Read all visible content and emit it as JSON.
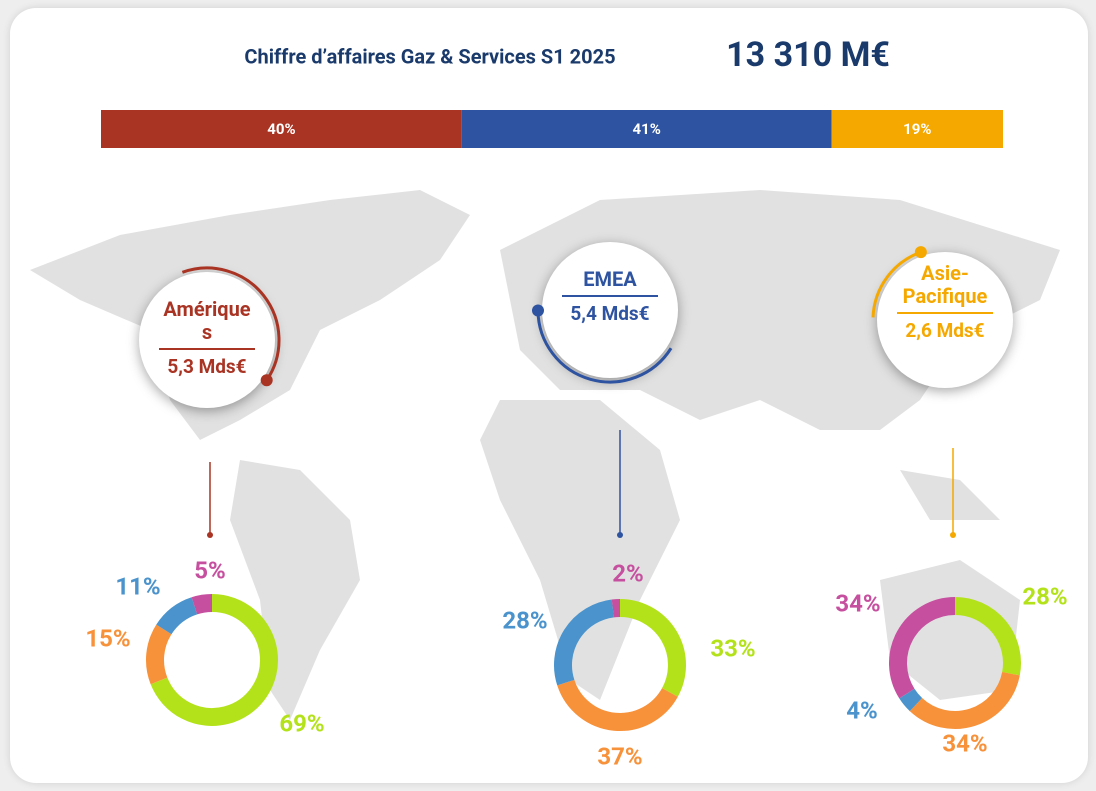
{
  "title": "Chiffre d’affaires Gaz & Services S1 2025",
  "total": "13 310 M€",
  "regions": [
    {
      "name": "Amériques",
      "revenue": "5,3 Mds€",
      "color": "#a93424"
    },
    {
      "name": "EMEA",
      "revenue": "5,4 Mds€",
      "color": "#2e53a0"
    },
    {
      "name": "Asie-Pacifique",
      "revenue": "2,6 Mds€",
      "color": "#f5a800"
    }
  ],
  "chart_data": [
    {
      "type": "stacked_bar",
      "values": [
        40,
        41,
        19
      ],
      "value_labels": [
        "40%",
        "41%",
        "19%"
      ],
      "colors": [
        "#a93424",
        "#2e53a0",
        "#f5a800"
      ]
    },
    {
      "type": "donut",
      "values": [
        69,
        15,
        11,
        5
      ],
      "value_labels": [
        "69%",
        "15%",
        "11%",
        "5%"
      ],
      "colors": [
        "#b3e21a",
        "#f7913a",
        "#4a93cc",
        "#c64f9f"
      ]
    },
    {
      "type": "donut",
      "values": [
        33,
        37,
        28,
        2
      ],
      "value_labels": [
        "33%",
        "37%",
        "28%",
        "2%"
      ],
      "colors": [
        "#b3e21a",
        "#f7913a",
        "#4a93cc",
        "#c64f9f"
      ]
    },
    {
      "type": "donut",
      "values": [
        28,
        34,
        4,
        34
      ],
      "value_labels": [
        "28%",
        "34%",
        "4%",
        "34%"
      ],
      "colors": [
        "#b3e21a",
        "#f7913a",
        "#4a93cc",
        "#c64f9f"
      ]
    }
  ]
}
